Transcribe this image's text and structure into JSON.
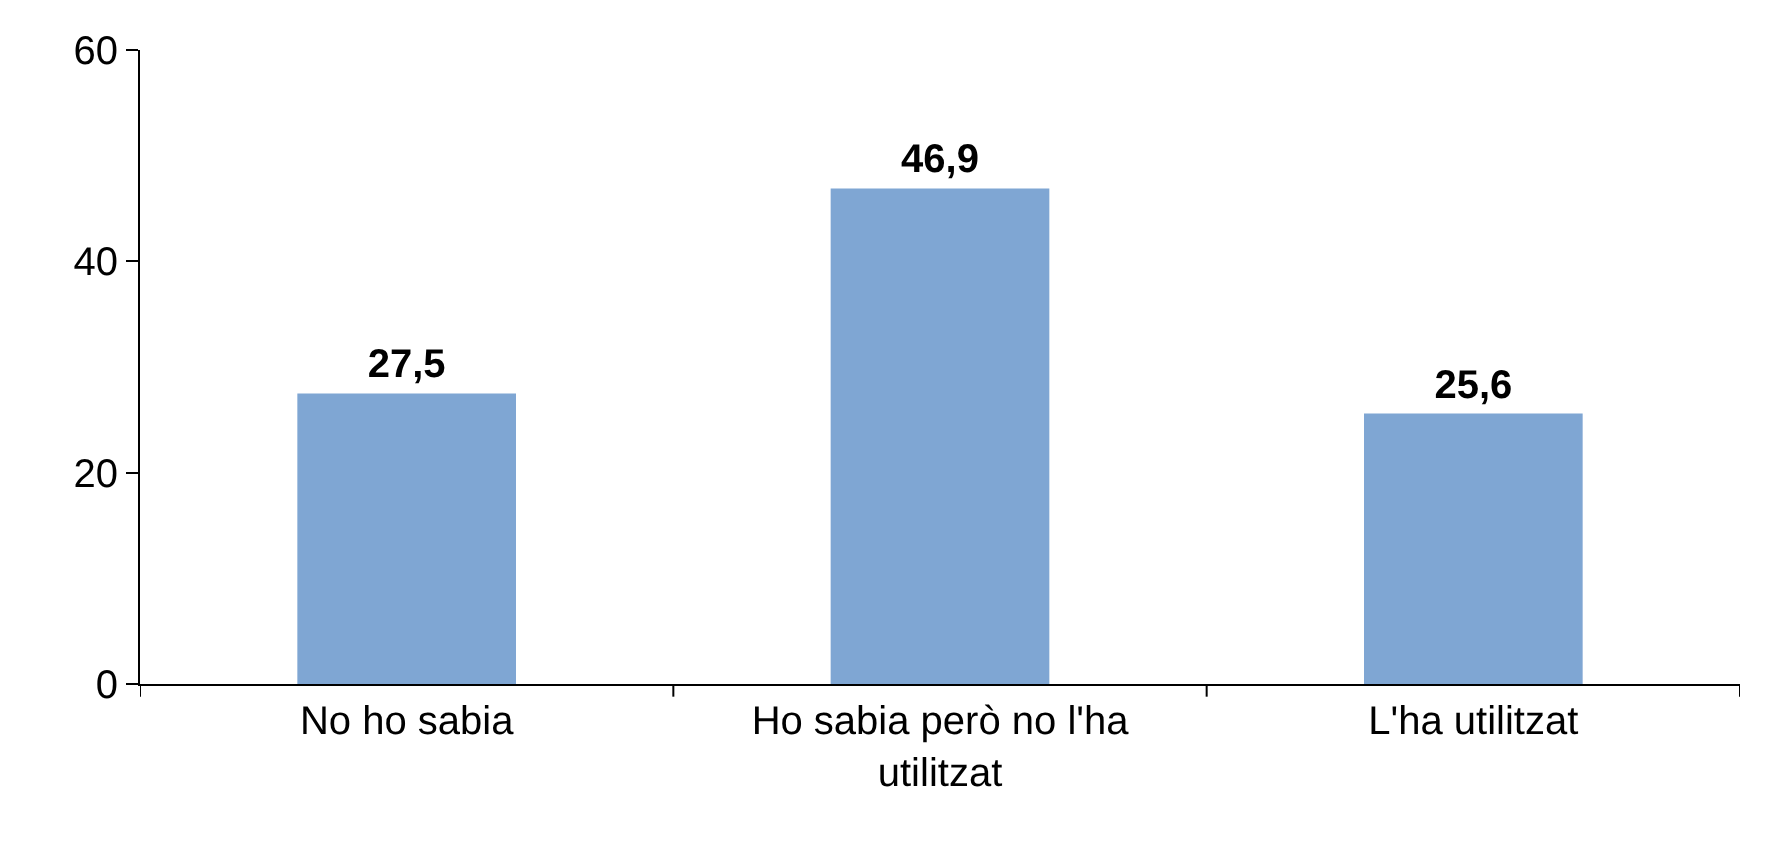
{
  "chart_data": {
    "type": "bar",
    "categories": [
      "No ho sabia",
      "Ho sabia però no l'ha utilitzat",
      "L'ha utilitzat"
    ],
    "values": [
      27.5,
      46.9,
      25.6
    ],
    "value_labels": [
      "27,5",
      "46,9",
      "25,6"
    ],
    "color": "#7fa6d3",
    "ylim": [
      0,
      60
    ],
    "yticks": [
      0,
      20,
      40,
      60
    ]
  }
}
